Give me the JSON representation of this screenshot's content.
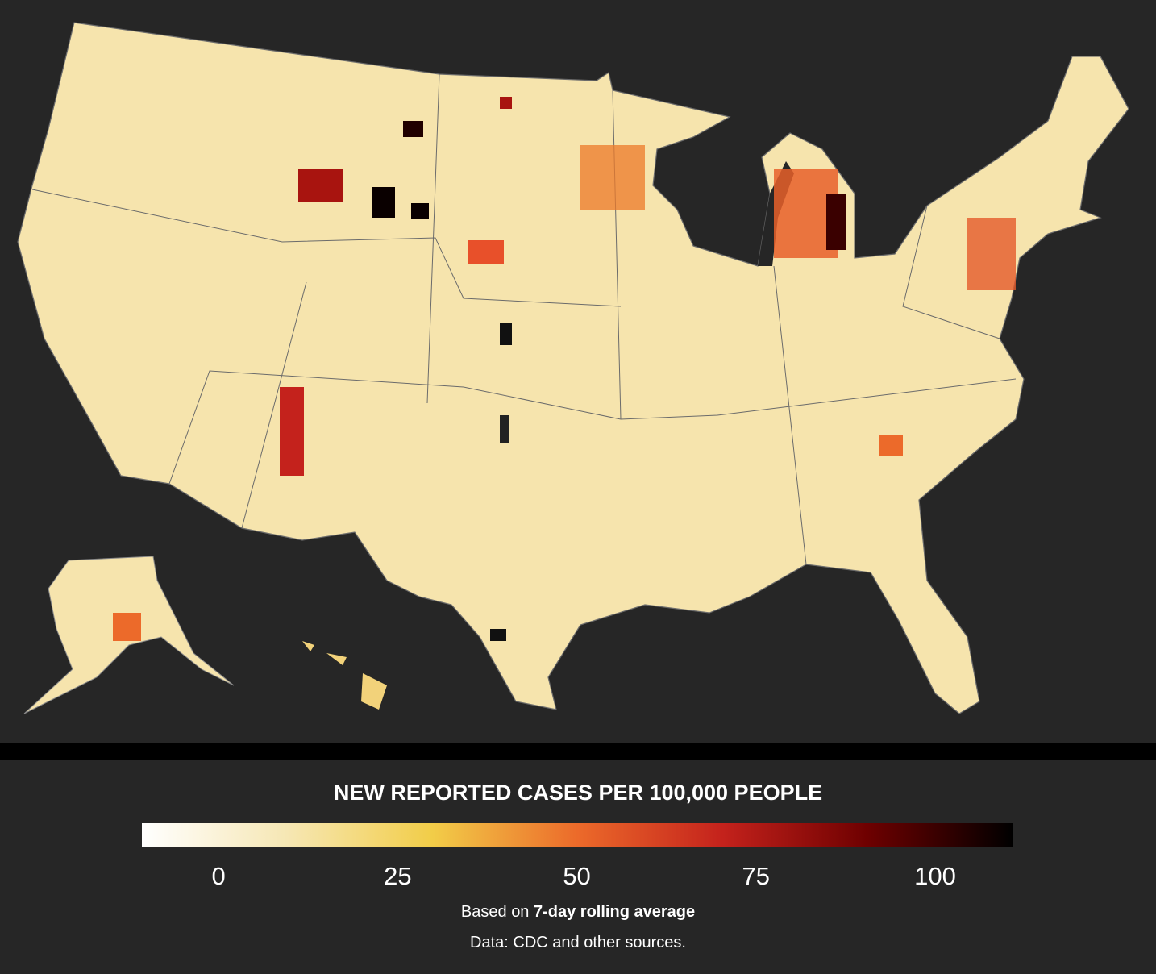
{
  "legend": {
    "title": "NEW REPORTED CASES PER 100,000 PEOPLE",
    "range": [
      -10.7,
      110.8
    ],
    "ticks": [
      0,
      25,
      50,
      75,
      100
    ],
    "colors": [
      "#ffffff",
      "#f6e7b4",
      "#f2cd48",
      "#ec6a2a",
      "#c4221c",
      "#6e0000",
      "#000000"
    ]
  },
  "note": {
    "prefix": "Based on",
    "emphasis": "7-day rolling average"
  },
  "source": "Data: CDC and other sources."
}
